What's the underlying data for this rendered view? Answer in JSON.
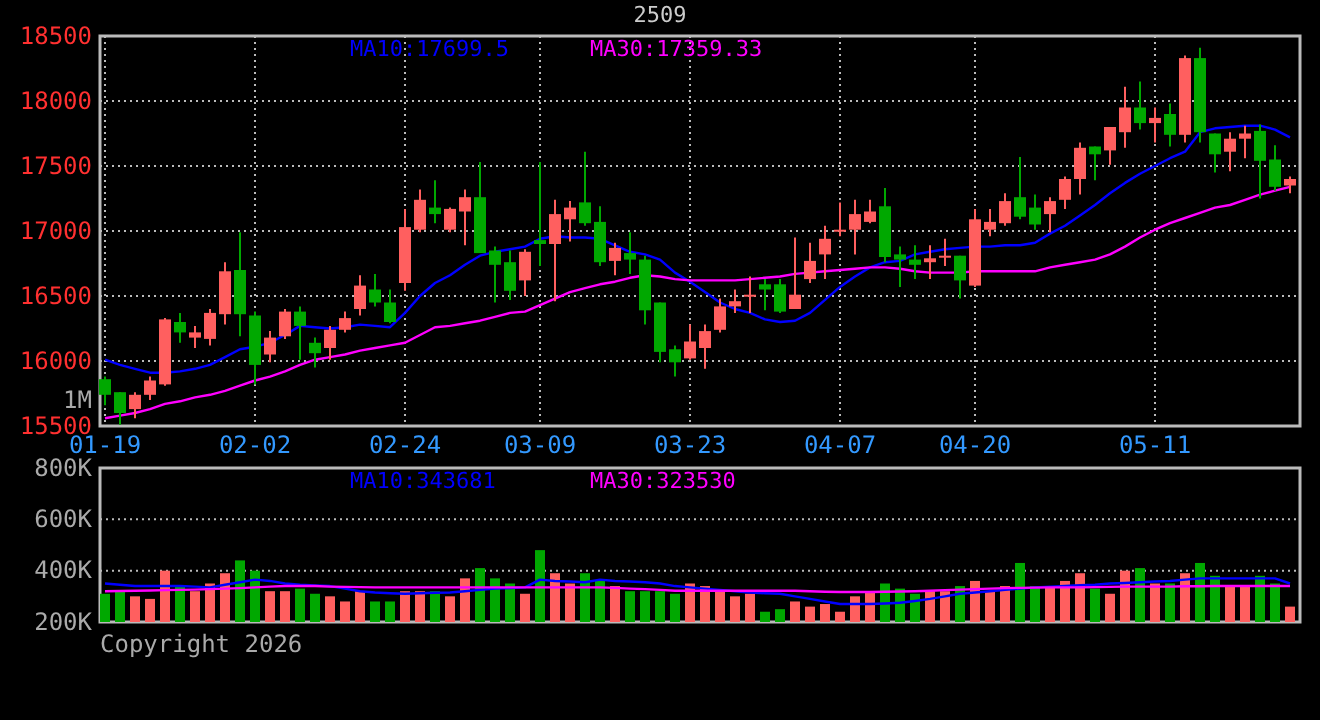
{
  "chart_data": [
    {
      "type": "candlestick",
      "title": "2509",
      "categories": [
        "01-19",
        null,
        null,
        null,
        null,
        null,
        null,
        null,
        null,
        null,
        "02-02",
        null,
        null,
        null,
        null,
        null,
        null,
        null,
        null,
        null,
        "02-24",
        null,
        null,
        null,
        null,
        null,
        null,
        null,
        null,
        "03-09",
        null,
        null,
        null,
        null,
        null,
        null,
        null,
        null,
        null,
        "03-23",
        null,
        null,
        null,
        null,
        null,
        null,
        null,
        null,
        null,
        "04-07",
        null,
        null,
        null,
        null,
        null,
        null,
        null,
        null,
        "04-20",
        null,
        null,
        null,
        null,
        null,
        null,
        null,
        null,
        null,
        null,
        null,
        "05-11",
        null,
        null,
        null,
        null,
        null,
        null,
        null,
        null,
        null
      ],
      "ohlc": [
        [
          15860,
          15880,
          15660,
          15740
        ],
        [
          15760,
          15760,
          15510,
          15600
        ],
        [
          15630,
          15760,
          15560,
          15740
        ],
        [
          15740,
          15880,
          15700,
          15850
        ],
        [
          15820,
          16330,
          15810,
          16320
        ],
        [
          16300,
          16370,
          16140,
          16220
        ],
        [
          16180,
          16270,
          16100,
          16220
        ],
        [
          16170,
          16400,
          16120,
          16370
        ],
        [
          16360,
          16760,
          16280,
          16690
        ],
        [
          16700,
          16990,
          16190,
          16360
        ],
        [
          16350,
          16380,
          15820,
          15970
        ],
        [
          16050,
          16230,
          15990,
          16180
        ],
        [
          16190,
          16400,
          16170,
          16380
        ],
        [
          16380,
          16420,
          16010,
          16270
        ],
        [
          16140,
          16180,
          15950,
          16060
        ],
        [
          16100,
          16270,
          16010,
          16240
        ],
        [
          16240,
          16380,
          16220,
          16330
        ],
        [
          16400,
          16660,
          16350,
          16580
        ],
        [
          16550,
          16670,
          16420,
          16450
        ],
        [
          16450,
          16550,
          16290,
          16300
        ],
        [
          16600,
          17170,
          16540,
          17030
        ],
        [
          17010,
          17320,
          16990,
          17240
        ],
        [
          17180,
          17390,
          17060,
          17130
        ],
        [
          17010,
          17180,
          16990,
          17170
        ],
        [
          17150,
          17320,
          16890,
          17260
        ],
        [
          17260,
          17530,
          16830,
          16830
        ],
        [
          16850,
          16880,
          16450,
          16740
        ],
        [
          16760,
          16850,
          16470,
          16540
        ],
        [
          16620,
          16860,
          16500,
          16840
        ],
        [
          16930,
          17530,
          16730,
          16900
        ],
        [
          16900,
          17240,
          16460,
          17130
        ],
        [
          17090,
          17230,
          16920,
          17180
        ],
        [
          17220,
          17610,
          17040,
          17060
        ],
        [
          17070,
          17190,
          16730,
          16760
        ],
        [
          16770,
          16910,
          16660,
          16870
        ],
        [
          16830,
          16990,
          16670,
          16780
        ],
        [
          16780,
          16810,
          16280,
          16390
        ],
        [
          16450,
          16450,
          15990,
          16070
        ],
        [
          16090,
          16120,
          15880,
          15990
        ],
        [
          16020,
          16280,
          16010,
          16150
        ],
        [
          16100,
          16280,
          15940,
          16230
        ],
        [
          16240,
          16480,
          16220,
          16420
        ],
        [
          16420,
          16550,
          16370,
          16460
        ],
        [
          16500,
          16650,
          16370,
          16510
        ],
        [
          16590,
          16630,
          16390,
          16550
        ],
        [
          16590,
          16630,
          16370,
          16380
        ],
        [
          16400,
          16950,
          16400,
          16510
        ],
        [
          16630,
          16910,
          16600,
          16770
        ],
        [
          16820,
          17040,
          16630,
          16940
        ],
        [
          17000,
          17220,
          16960,
          17010
        ],
        [
          17010,
          17240,
          16820,
          17130
        ],
        [
          17070,
          17240,
          17060,
          17150
        ],
        [
          17190,
          17330,
          16760,
          16800
        ],
        [
          16820,
          16880,
          16570,
          16780
        ],
        [
          16780,
          16890,
          16630,
          16740
        ],
        [
          16760,
          16890,
          16630,
          16790
        ],
        [
          16800,
          16940,
          16730,
          16810
        ],
        [
          16810,
          16810,
          16480,
          16620
        ],
        [
          16580,
          17170,
          16570,
          17090
        ],
        [
          17010,
          17170,
          16960,
          17070
        ],
        [
          17060,
          17290,
          17040,
          17230
        ],
        [
          17260,
          17570,
          17090,
          17110
        ],
        [
          17180,
          17280,
          17010,
          17050
        ],
        [
          17130,
          17260,
          16990,
          17230
        ],
        [
          17240,
          17420,
          17170,
          17400
        ],
        [
          17400,
          17680,
          17280,
          17640
        ],
        [
          17650,
          17650,
          17390,
          17590
        ],
        [
          17620,
          17800,
          17510,
          17800
        ],
        [
          17760,
          18110,
          17640,
          17950
        ],
        [
          17950,
          18150,
          17780,
          17830
        ],
        [
          17830,
          17950,
          17680,
          17870
        ],
        [
          17900,
          17980,
          17650,
          17740
        ],
        [
          17740,
          18350,
          17680,
          18330
        ],
        [
          18330,
          18410,
          17680,
          17760
        ],
        [
          17750,
          17750,
          17450,
          17590
        ],
        [
          17610,
          17760,
          17460,
          17710
        ],
        [
          17710,
          17810,
          17560,
          17750
        ],
        [
          17770,
          17820,
          17250,
          17540
        ],
        [
          17550,
          17660,
          17310,
          17340
        ],
        [
          17350,
          17420,
          17290,
          17400
        ]
      ],
      "colors": [
        "#00a800",
        "#00a800",
        "#ff5f5f",
        "#ff5f5f",
        "#ff5f5f",
        "#00a800",
        "#ff5f5f",
        "#ff5f5f",
        "#ff5f5f",
        "#00a800",
        "#00a800",
        "#ff5f5f",
        "#ff5f5f",
        "#00a800",
        "#00a800",
        "#ff5f5f",
        "#ff5f5f",
        "#ff5f5f",
        "#00a800",
        "#00a800",
        "#ff5f5f",
        "#ff5f5f",
        "#00a800",
        "#ff5f5f",
        "#ff5f5f",
        "#00a800",
        "#00a800",
        "#00a800",
        "#ff5f5f",
        "#00a800",
        "#ff5f5f",
        "#ff5f5f",
        "#00a800",
        "#00a800",
        "#ff5f5f",
        "#00a800",
        "#00a800",
        "#00a800",
        "#00a800",
        "#ff5f5f",
        "#ff5f5f",
        "#ff5f5f",
        "#ff5f5f",
        "#ff5f5f",
        "#00a800",
        "#00a800",
        "#ff5f5f",
        "#ff5f5f",
        "#ff5f5f",
        "#ff5f5f",
        "#ff5f5f",
        "#ff5f5f",
        "#00a800",
        "#00a800",
        "#00a800",
        "#ff5f5f",
        "#ff5f5f",
        "#00a800",
        "#ff5f5f",
        "#ff5f5f",
        "#ff5f5f",
        "#00a800",
        "#00a800",
        "#ff5f5f",
        "#ff5f5f",
        "#ff5f5f",
        "#00a800",
        "#ff5f5f",
        "#ff5f5f",
        "#00a800",
        "#ff5f5f",
        "#00a800",
        "#ff5f5f",
        "#00a800",
        "#00a800",
        "#ff5f5f",
        "#ff5f5f",
        "#00a800",
        "#00a800",
        "#ff5f5f"
      ],
      "series": [
        {
          "type": "line",
          "name": "MA10:17699.5",
          "color": "#0000ff",
          "values": [
            16010,
            15970,
            15940,
            15910,
            15910,
            15920,
            15940,
            15970,
            16030,
            16090,
            16110,
            16140,
            16200,
            16270,
            16260,
            16250,
            16260,
            16280,
            16270,
            16260,
            16370,
            16500,
            16600,
            16660,
            16740,
            16810,
            16840,
            16860,
            16880,
            16940,
            16960,
            16950,
            16950,
            16940,
            16890,
            16840,
            16820,
            16780,
            16680,
            16610,
            16530,
            16450,
            16400,
            16370,
            16320,
            16300,
            16310,
            16370,
            16470,
            16570,
            16650,
            16720,
            16760,
            16770,
            16820,
            16840,
            16860,
            16870,
            16880,
            16880,
            16890,
            16890,
            16910,
            16980,
            17040,
            17120,
            17200,
            17290,
            17370,
            17440,
            17500,
            17560,
            17610,
            17760,
            17790,
            17800,
            17810,
            17810,
            17780,
            17720
          ]
        },
        {
          "type": "line",
          "name": "MA30:17359.33",
          "color": "#ff00ff",
          "values": [
            15560,
            15580,
            15600,
            15630,
            15670,
            15690,
            15720,
            15740,
            15770,
            15810,
            15850,
            15880,
            15920,
            15970,
            16010,
            16030,
            16050,
            16080,
            16100,
            16120,
            16140,
            16200,
            16260,
            16270,
            16290,
            16310,
            16340,
            16370,
            16380,
            16430,
            16480,
            16530,
            16560,
            16590,
            16610,
            16640,
            16660,
            16650,
            16630,
            16620,
            16620,
            16620,
            16620,
            16630,
            16640,
            16650,
            16670,
            16680,
            16690,
            16700,
            16710,
            16720,
            16720,
            16710,
            16690,
            16680,
            16680,
            16680,
            16690,
            16690,
            16690,
            16690,
            16690,
            16720,
            16740,
            16760,
            16780,
            16820,
            16880,
            16950,
            17010,
            17060,
            17100,
            17140,
            17180,
            17200,
            17240,
            17280,
            17310,
            17340
          ]
        }
      ],
      "ylim": [
        15500,
        18500
      ],
      "yticks": [
        15500,
        16000,
        16500,
        17000,
        17500,
        18000,
        18500
      ],
      "grid": true,
      "legend": "top",
      "annotations": [
        "1M"
      ]
    },
    {
      "type": "bar",
      "categories": [
        null,
        null,
        null,
        null,
        null,
        null,
        null,
        null,
        null,
        null,
        null,
        null,
        null,
        null,
        null,
        null,
        null,
        null,
        null,
        null,
        null,
        null,
        null,
        null,
        null,
        null,
        null,
        null,
        null,
        null,
        null,
        null,
        null,
        null,
        null,
        null,
        null,
        null,
        null,
        null,
        null,
        null,
        null,
        null,
        null,
        null,
        null,
        null,
        null,
        null,
        null,
        null,
        null,
        null,
        null,
        null,
        null,
        null,
        null,
        null,
        null,
        null,
        null,
        null,
        null,
        null,
        null,
        null,
        null,
        null,
        null,
        null,
        null,
        null,
        null,
        null,
        null,
        null,
        null,
        null
      ],
      "series": [
        {
          "type": "bar",
          "colors": [
            "#00a800",
            "#00a800",
            "#ff5f5f",
            "#ff5f5f",
            "#ff5f5f",
            "#00a800",
            "#ff5f5f",
            "#ff5f5f",
            "#ff5f5f",
            "#00a800",
            "#00a800",
            "#ff5f5f",
            "#ff5f5f",
            "#00a800",
            "#00a800",
            "#ff5f5f",
            "#ff5f5f",
            "#ff5f5f",
            "#00a800",
            "#00a800",
            "#ff5f5f",
            "#ff5f5f",
            "#00a800",
            "#ff5f5f",
            "#ff5f5f",
            "#00a800",
            "#00a800",
            "#00a800",
            "#ff5f5f",
            "#00a800",
            "#ff5f5f",
            "#ff5f5f",
            "#00a800",
            "#00a800",
            "#ff5f5f",
            "#00a800",
            "#00a800",
            "#00a800",
            "#00a800",
            "#ff5f5f",
            "#ff5f5f",
            "#ff5f5f",
            "#ff5f5f",
            "#ff5f5f",
            "#00a800",
            "#00a800",
            "#ff5f5f",
            "#ff5f5f",
            "#ff5f5f",
            "#ff5f5f",
            "#ff5f5f",
            "#ff5f5f",
            "#00a800",
            "#00a800",
            "#00a800",
            "#ff5f5f",
            "#ff5f5f",
            "#00a800",
            "#ff5f5f",
            "#ff5f5f",
            "#ff5f5f",
            "#00a800",
            "#00a800",
            "#ff5f5f",
            "#ff5f5f",
            "#ff5f5f",
            "#00a800",
            "#ff5f5f",
            "#ff5f5f",
            "#00a800",
            "#ff5f5f",
            "#00a800",
            "#ff5f5f",
            "#00a800",
            "#00a800",
            "#ff5f5f",
            "#ff5f5f",
            "#00a800",
            "#00a800",
            "#ff5f5f"
          ],
          "values": [
            310000,
            320000,
            300000,
            290000,
            400000,
            340000,
            320000,
            350000,
            390000,
            440000,
            400000,
            320000,
            320000,
            330000,
            310000,
            300000,
            280000,
            320000,
            280000,
            280000,
            320000,
            320000,
            320000,
            300000,
            370000,
            410000,
            370000,
            350000,
            310000,
            480000,
            390000,
            350000,
            390000,
            360000,
            340000,
            320000,
            320000,
            320000,
            310000,
            350000,
            340000,
            320000,
            300000,
            310000,
            240000,
            250000,
            280000,
            260000,
            270000,
            240000,
            300000,
            320000,
            350000,
            330000,
            310000,
            320000,
            320000,
            340000,
            360000,
            320000,
            340000,
            430000,
            340000,
            340000,
            360000,
            390000,
            330000,
            310000,
            400000,
            410000,
            350000,
            350000,
            390000,
            430000,
            380000,
            340000,
            340000,
            380000,
            350000,
            260000
          ]
        },
        {
          "type": "line",
          "name": "MA10:343681",
          "color": "#0000ff",
          "values": [
            350000,
            345000,
            340000,
            340000,
            340000,
            340000,
            338000,
            335000,
            345000,
            355000,
            365000,
            360000,
            350000,
            345000,
            342000,
            340000,
            330000,
            320000,
            315000,
            312000,
            310000,
            312000,
            314000,
            315000,
            320000,
            325000,
            330000,
            332000,
            335000,
            365000,
            360000,
            358000,
            355000,
            365000,
            360000,
            358000,
            355000,
            350000,
            340000,
            335000,
            330000,
            325000,
            320000,
            315000,
            312000,
            310000,
            300000,
            290000,
            280000,
            270000,
            270000,
            270000,
            272000,
            275000,
            282000,
            290000,
            300000,
            310000,
            315000,
            320000,
            325000,
            330000,
            335000,
            338000,
            340000,
            343000,
            345000,
            350000,
            352000,
            355000,
            358000,
            360000,
            365000,
            370000,
            370000,
            370000,
            370000,
            370000,
            370000,
            350000
          ]
        },
        {
          "type": "line",
          "name": "MA30:323530",
          "color": "#ff00ff",
          "values": [
            320000,
            321000,
            322000,
            323000,
            324000,
            325000,
            326000,
            328000,
            330000,
            332000,
            335000,
            338000,
            340000,
            340000,
            340000,
            338000,
            337000,
            336000,
            335000,
            335000,
            335000,
            335000,
            335000,
            335000,
            335000,
            335000,
            335000,
            335000,
            335000,
            335000,
            335000,
            335000,
            335000,
            335000,
            333000,
            330000,
            328000,
            325000,
            322000,
            322000,
            322000,
            322000,
            322000,
            322000,
            322000,
            322000,
            322000,
            320000,
            318000,
            317000,
            317000,
            317000,
            318000,
            319000,
            320000,
            322000,
            324000,
            326000,
            328000,
            330000,
            332000,
            333000,
            334000,
            335000,
            335000,
            335000,
            336000,
            337000,
            338000,
            338000,
            338000,
            338000,
            339000,
            339000,
            340000,
            340000,
            340000,
            340000,
            340000,
            340000
          ]
        }
      ],
      "ylim": [
        200000,
        800000
      ],
      "yticks": [
        {
          "value": 200000,
          "label": "200K"
        },
        {
          "value": 400000,
          "label": "400K"
        },
        {
          "value": 600000,
          "label": "600K"
        },
        {
          "value": 800000,
          "label": "800K"
        }
      ],
      "grid": "y",
      "tick_labels": "y",
      "legend": "top",
      "annotations": [
        "Copyright 2026"
      ]
    }
  ]
}
